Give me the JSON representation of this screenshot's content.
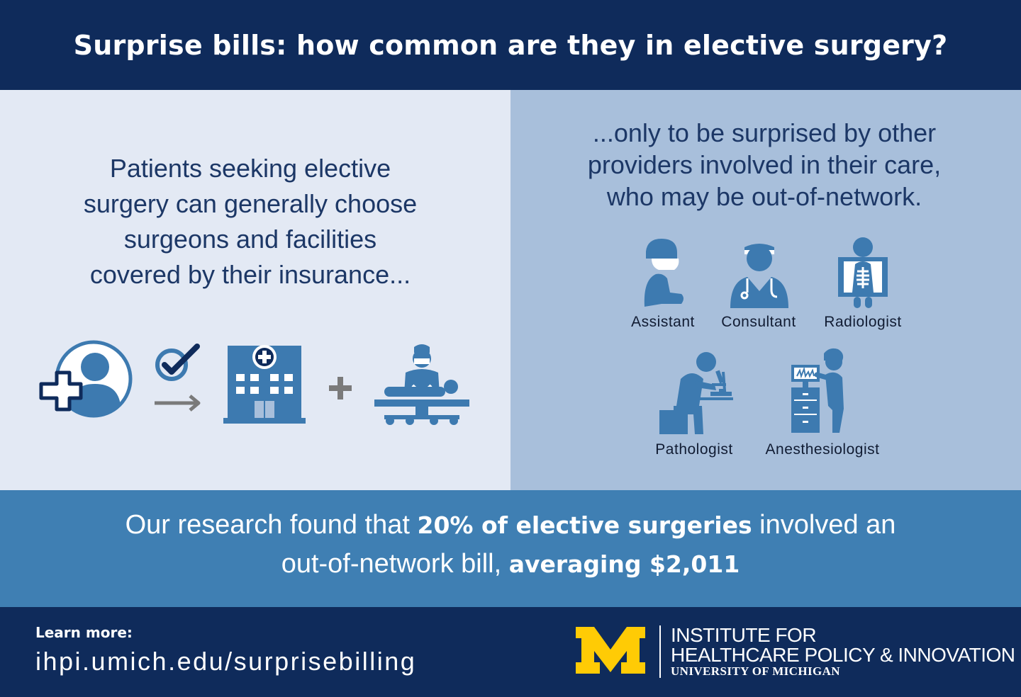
{
  "header": {
    "title": "Surprise bills: how common are they in elective surgery?"
  },
  "left": {
    "lines": [
      "Patients seeking elective",
      "surgery can generally choose",
      "surgeons and facilities",
      "covered by their insurance..."
    ]
  },
  "right": {
    "lines": [
      "...only to be surprised by other",
      "providers involved in their care,",
      "who may be out-of-network."
    ],
    "roles": [
      "Assistant",
      "Consultant",
      "Radiologist",
      "Pathologist",
      "Anesthesiologist"
    ]
  },
  "finding": {
    "line1_pre": "Our research found that ",
    "line1_bold": "20% of elective surgeries",
    "line1_post": " involved an",
    "line2_pre": "out-of-network bill, ",
    "line2_bold": "averaging $2,011"
  },
  "footer": {
    "learn_label": "Learn more:",
    "link": "ihpi.umich.edu/surprisebilling",
    "institute_line1": "INSTITUTE FOR",
    "institute_line2": "HEALTHCARE POLICY & INNOVATION",
    "institute_line3": "UNIVERSITY OF MICHIGAN"
  },
  "colors": {
    "navy": "#0f2b5b",
    "icon_blue": "#3d7ab0",
    "light_panel": "#e3e9f4",
    "mid_panel": "#a8bfdb",
    "band_blue": "#3f7fb3",
    "maize": "#ffcb05"
  },
  "icons": [
    "patient-cross-icon",
    "checkmark-icon",
    "arrow-right-icon",
    "hospital-icon",
    "plus-icon",
    "surgeon-icon",
    "assistant-icon",
    "consultant-icon",
    "radiologist-icon",
    "pathologist-icon",
    "anesthesiologist-icon",
    "michigan-m-logo"
  ]
}
